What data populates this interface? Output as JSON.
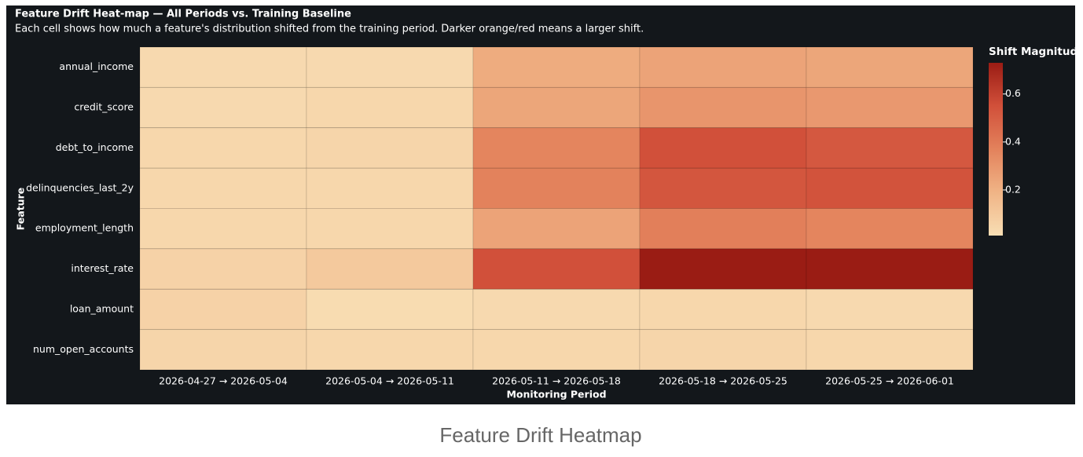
{
  "chart_data": {
    "type": "heatmap",
    "title": "Feature Drift Heat-map — All Periods vs. Training Baseline",
    "subtitle": "Each cell shows how much a feature's distribution shifted from the training period. Darker orange/red means a larger shift.",
    "x_label": "Monitoring Period",
    "y_label": "Feature",
    "x_categories": [
      "2026-04-27 → 2026-05-04",
      "2026-05-04 → 2026-05-11",
      "2026-05-11 → 2026-05-18",
      "2026-05-18 → 2026-05-25",
      "2026-05-25 → 2026-06-01"
    ],
    "y_categories": [
      "annual_income",
      "credit_score",
      "debt_to_income",
      "delinquencies_last_2y",
      "employment_length",
      "interest_rate",
      "loan_amount",
      "num_open_accounts"
    ],
    "z": [
      [
        0.03,
        0.03,
        0.22,
        0.25,
        0.24
      ],
      [
        0.03,
        0.04,
        0.24,
        0.3,
        0.29
      ],
      [
        0.04,
        0.05,
        0.36,
        0.55,
        0.52
      ],
      [
        0.04,
        0.04,
        0.37,
        0.53,
        0.54
      ],
      [
        0.04,
        0.04,
        0.25,
        0.38,
        0.36
      ],
      [
        0.06,
        0.1,
        0.55,
        0.73,
        0.73
      ],
      [
        0.06,
        0.02,
        0.03,
        0.04,
        0.03
      ],
      [
        0.05,
        0.04,
        0.04,
        0.05,
        0.04
      ]
    ],
    "zlim": [
      0.01,
      0.73
    ],
    "colorscale": [
      "#f8deb4",
      "#f0b486",
      "#e3825c",
      "#d1503a",
      "#9a1c14"
    ],
    "colorbar_title": "Shift Magnitude",
    "colorbar_ticks": [
      0.2,
      0.4,
      0.6
    ],
    "caption": "Feature Drift Heatmap"
  }
}
